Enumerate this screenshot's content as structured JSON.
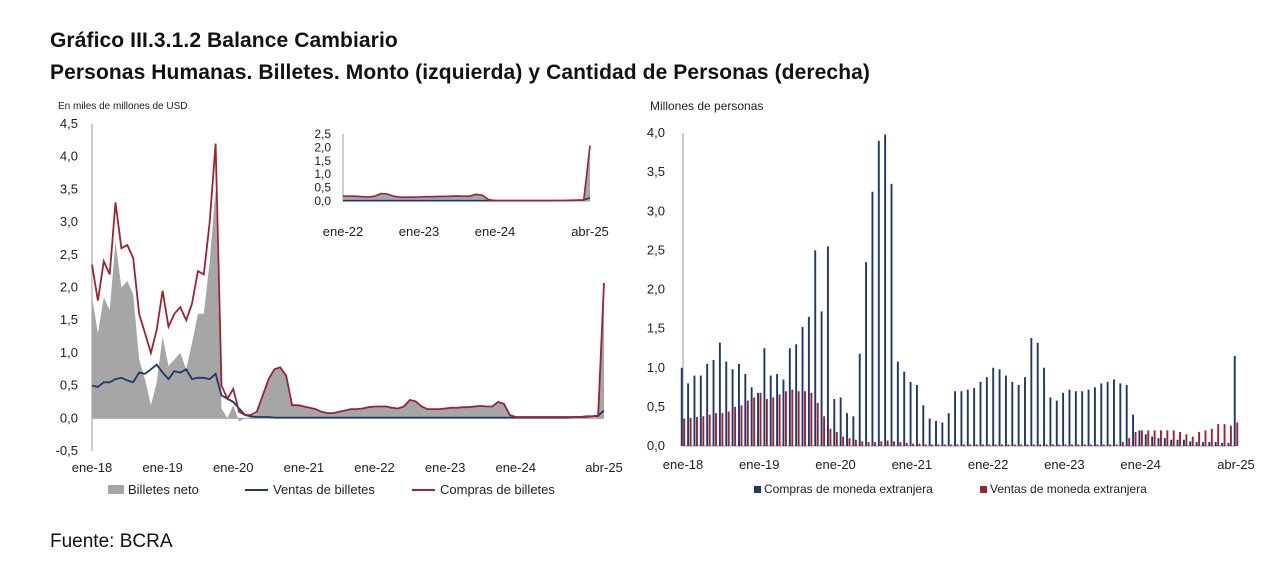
{
  "title": "Gráfico III.3.1.2 Balance Cambiario",
  "subtitle": "Personas Humanas. Billetes. Monto (izquierda) y Cantidad de Personas (derecha)",
  "source": "Fuente: BCRA",
  "colors": {
    "billetes_neto": "#a6a6a6",
    "ventas": "#1f3868",
    "compras": "#9b2335",
    "bar_compras": "#1f3868",
    "bar_ventas": "#9b2335"
  },
  "chart_data": [
    {
      "type": "line",
      "ylabel": "En miles de millones de USD",
      "ylim": [
        -0.5,
        4.5
      ],
      "yticks": [
        "-0,5",
        "0,0",
        "0,5",
        "1,0",
        "1,5",
        "2,0",
        "2,5",
        "3,0",
        "3,5",
        "4,0",
        "4,5"
      ],
      "xticks": [
        "ene-18",
        "ene-19",
        "ene-20",
        "ene-21",
        "ene-22",
        "ene-23",
        "ene-24",
        "abr-25"
      ],
      "x_start": "2018-01",
      "x_end": "2025-04",
      "legend": [
        "Billetes neto",
        "Ventas de billetes",
        "Compras de billetes"
      ],
      "legend_position": "bottom",
      "series": [
        {
          "name": "Compras de billetes",
          "values": [
            2.35,
            1.8,
            2.4,
            2.2,
            3.3,
            2.6,
            2.65,
            2.45,
            1.6,
            1.3,
            1.0,
            1.35,
            1.95,
            1.4,
            1.6,
            1.7,
            1.5,
            1.75,
            2.25,
            2.2,
            3.0,
            4.2,
            0.5,
            0.3,
            0.45,
            0.1,
            0.05,
            0.05,
            0.1,
            0.35,
            0.6,
            0.75,
            0.78,
            0.65,
            0.2,
            0.2,
            0.18,
            0.16,
            0.14,
            0.1,
            0.08,
            0.08,
            0.1,
            0.12,
            0.14,
            0.14,
            0.15,
            0.17,
            0.18,
            0.18,
            0.18,
            0.16,
            0.15,
            0.18,
            0.28,
            0.26,
            0.18,
            0.14,
            0.14,
            0.14,
            0.15,
            0.16,
            0.16,
            0.17,
            0.17,
            0.18,
            0.19,
            0.18,
            0.18,
            0.25,
            0.22,
            0.05,
            0.02,
            0.02,
            0.02,
            0.02,
            0.02,
            0.02,
            0.02,
            0.02,
            0.02,
            0.02,
            0.02,
            0.02,
            0.02,
            0.03,
            0.03,
            2.07
          ]
        },
        {
          "name": "Ventas de billetes",
          "values": [
            0.5,
            0.48,
            0.55,
            0.55,
            0.6,
            0.62,
            0.58,
            0.55,
            0.7,
            0.68,
            0.75,
            0.82,
            0.7,
            0.6,
            0.72,
            0.7,
            0.75,
            0.6,
            0.62,
            0.62,
            0.6,
            0.68,
            0.35,
            0.3,
            0.25,
            0.15,
            0.05,
            0.03,
            0.02,
            0.02,
            0.02,
            0.01,
            0.01,
            0.01,
            0.01,
            0.01,
            0.01,
            0.01,
            0.01,
            0.01,
            0.01,
            0.01,
            0.01,
            0.01,
            0.01,
            0.01,
            0.01,
            0.01,
            0.01,
            0.01,
            0.01,
            0.01,
            0.01,
            0.01,
            0.01,
            0.01,
            0.01,
            0.01,
            0.01,
            0.01,
            0.01,
            0.01,
            0.01,
            0.01,
            0.01,
            0.01,
            0.01,
            0.01,
            0.01,
            0.01,
            0.01,
            0.01,
            0.01,
            0.01,
            0.01,
            0.01,
            0.01,
            0.01,
            0.01,
            0.01,
            0.01,
            0.01,
            0.02,
            0.02,
            0.03,
            0.03,
            0.04,
            0.12
          ]
        },
        {
          "name": "Billetes neto",
          "values": [
            1.85,
            1.3,
            1.85,
            1.65,
            2.7,
            2.0,
            2.1,
            1.9,
            0.9,
            0.6,
            0.2,
            0.55,
            1.25,
            0.8,
            0.9,
            1.0,
            0.75,
            1.15,
            1.6,
            1.6,
            2.4,
            3.5,
            0.15,
            0.0,
            0.2,
            -0.05,
            0.0,
            0.02,
            0.08,
            0.33,
            0.58,
            0.74,
            0.77,
            0.64,
            0.19,
            0.19,
            0.17,
            0.15,
            0.13,
            0.09,
            0.07,
            0.07,
            0.09,
            0.11,
            0.13,
            0.13,
            0.14,
            0.16,
            0.17,
            0.17,
            0.17,
            0.15,
            0.14,
            0.17,
            0.27,
            0.25,
            0.17,
            0.13,
            0.13,
            0.13,
            0.14,
            0.15,
            0.15,
            0.16,
            0.16,
            0.17,
            0.18,
            0.17,
            0.17,
            0.24,
            0.21,
            0.04,
            0.01,
            0.01,
            0.01,
            0.01,
            0.01,
            0.01,
            0.01,
            0.01,
            0.01,
            0.01,
            0.0,
            0.0,
            -0.01,
            0.0,
            -0.01,
            1.95
          ]
        }
      ]
    },
    {
      "type": "line",
      "note": "inset",
      "ylim": [
        0.0,
        2.5
      ],
      "yticks": [
        "0,0",
        "0,5",
        "1,0",
        "1,5",
        "2,0",
        "2,5"
      ],
      "xticks": [
        "ene-22",
        "ene-23",
        "ene-24",
        "abr-25"
      ],
      "x_start": "2022-01",
      "x_end": "2025-04"
    },
    {
      "type": "bar",
      "ylabel": "Millones de personas",
      "ylim": [
        0.0,
        4.0
      ],
      "yticks": [
        "0,0",
        "0,5",
        "1,0",
        "1,5",
        "2,0",
        "2,5",
        "3,0",
        "3,5",
        "4,0"
      ],
      "xticks": [
        "ene-18",
        "ene-19",
        "ene-20",
        "ene-21",
        "ene-22",
        "ene-23",
        "ene-24",
        "abr-25"
      ],
      "x_start": "2018-01",
      "x_end": "2025-04",
      "legend": [
        "Compras de moneda extranjera",
        "Ventas de moneda extranjera"
      ],
      "legend_position": "bottom",
      "series": [
        {
          "name": "Compras de moneda extranjera",
          "values": [
            1.0,
            0.8,
            0.9,
            0.9,
            1.05,
            1.1,
            1.32,
            1.08,
            0.98,
            1.05,
            0.92,
            0.75,
            0.68,
            1.25,
            0.9,
            0.92,
            0.85,
            1.25,
            1.3,
            1.52,
            1.65,
            2.5,
            1.72,
            2.55,
            0.6,
            0.62,
            0.42,
            0.38,
            1.18,
            2.35,
            3.25,
            3.9,
            3.98,
            3.35,
            1.08,
            0.95,
            0.82,
            0.78,
            0.52,
            0.35,
            0.32,
            0.3,
            0.42,
            0.7,
            0.7,
            0.72,
            0.74,
            0.82,
            0.88,
            1.0,
            0.98,
            0.9,
            0.82,
            0.78,
            0.88,
            1.38,
            1.32,
            1.0,
            0.62,
            0.58,
            0.68,
            0.72,
            0.7,
            0.7,
            0.72,
            0.75,
            0.8,
            0.82,
            0.85,
            0.8,
            0.78,
            0.4,
            0.2,
            0.15,
            0.12,
            0.1,
            0.1,
            0.08,
            0.08,
            0.08,
            0.06,
            0.05,
            0.05,
            0.05,
            0.05,
            0.04,
            0.04,
            1.15
          ]
        },
        {
          "name": "Ventas de moneda extranjera",
          "values": [
            0.35,
            0.36,
            0.37,
            0.38,
            0.4,
            0.42,
            0.42,
            0.44,
            0.5,
            0.52,
            0.58,
            0.62,
            0.68,
            0.6,
            0.62,
            0.66,
            0.7,
            0.72,
            0.7,
            0.7,
            0.68,
            0.55,
            0.38,
            0.22,
            0.18,
            0.12,
            0.1,
            0.08,
            0.06,
            0.05,
            0.05,
            0.06,
            0.07,
            0.06,
            0.05,
            0.04,
            0.03,
            0.03,
            0.02,
            0.02,
            0.02,
            0.02,
            0.02,
            0.02,
            0.02,
            0.02,
            0.02,
            0.02,
            0.02,
            0.02,
            0.02,
            0.02,
            0.02,
            0.02,
            0.02,
            0.02,
            0.02,
            0.02,
            0.02,
            0.02,
            0.02,
            0.02,
            0.02,
            0.02,
            0.02,
            0.02,
            0.02,
            0.02,
            0.02,
            0.05,
            0.1,
            0.18,
            0.2,
            0.2,
            0.2,
            0.2,
            0.2,
            0.2,
            0.18,
            0.15,
            0.12,
            0.18,
            0.2,
            0.22,
            0.28,
            0.28,
            0.26,
            0.3
          ]
        }
      ]
    }
  ]
}
